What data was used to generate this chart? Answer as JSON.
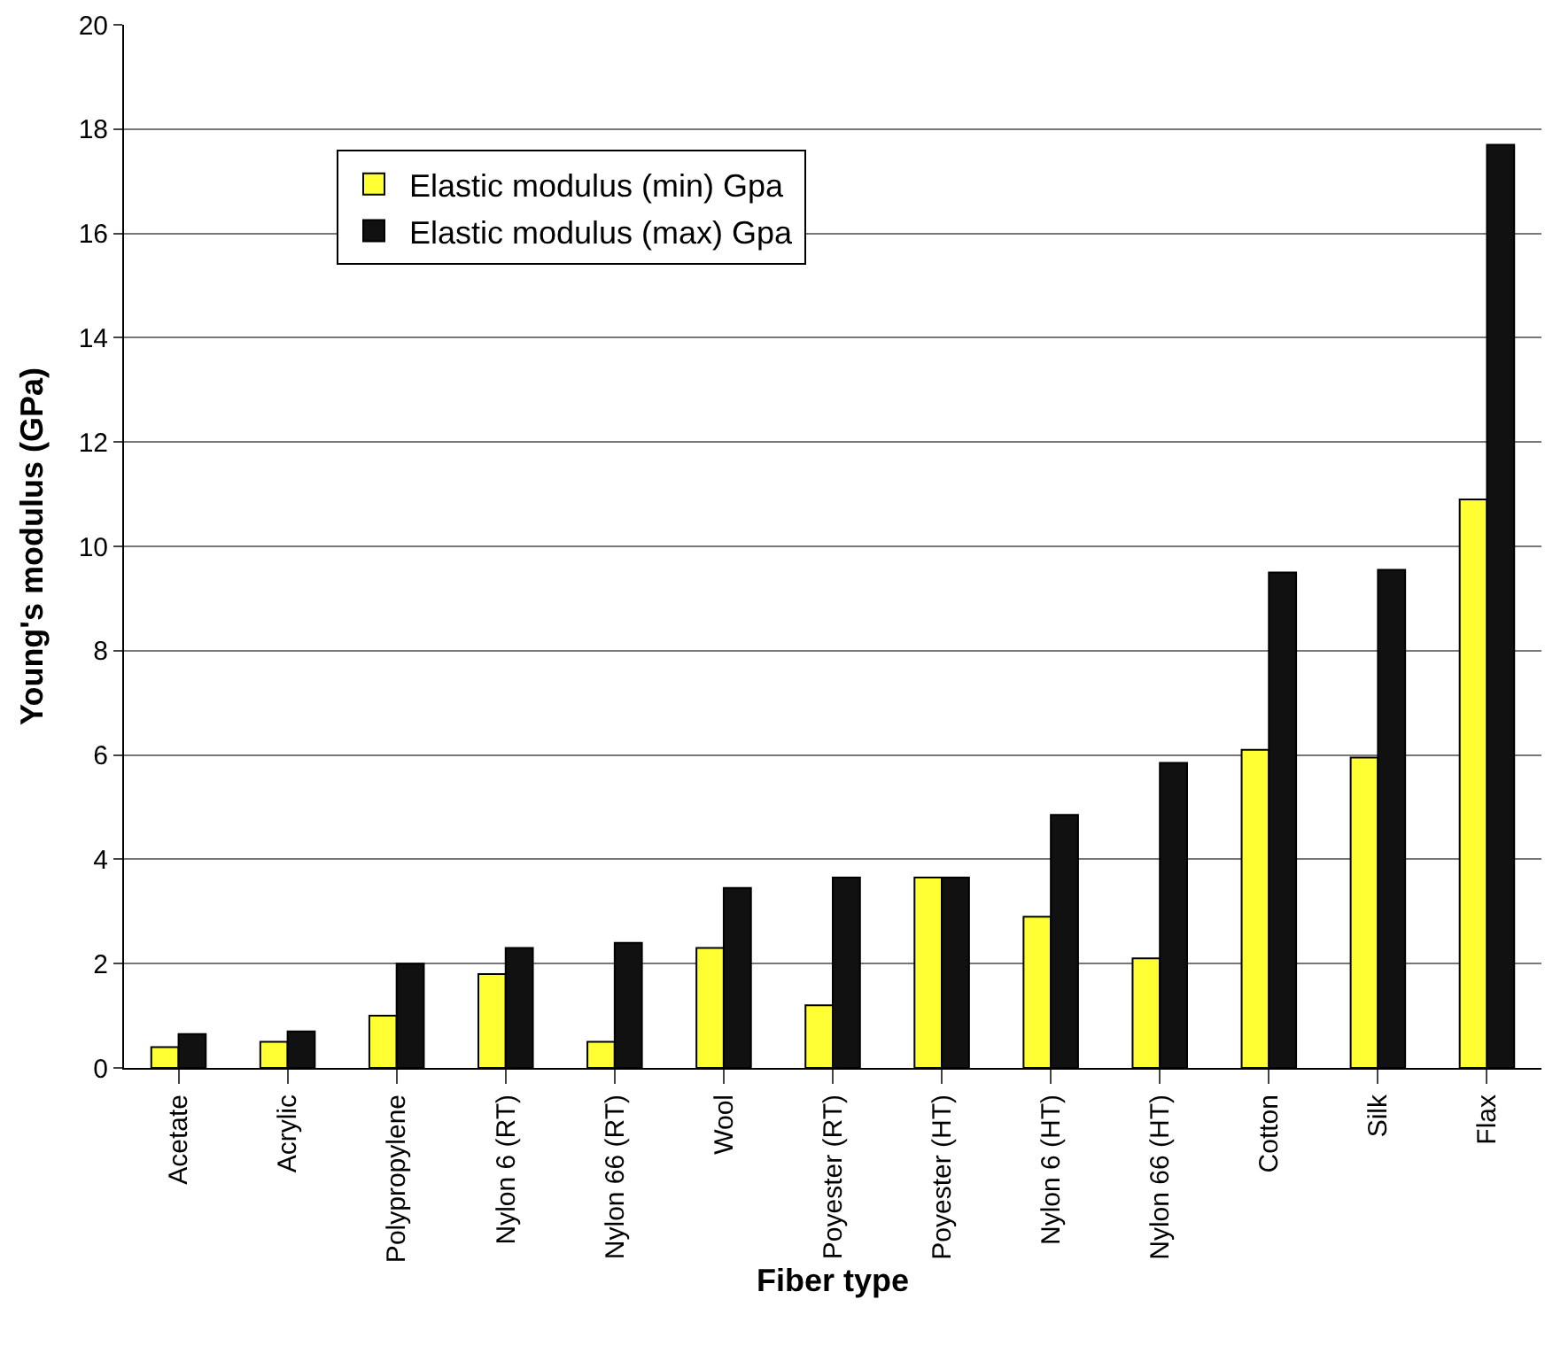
{
  "chart_data": {
    "type": "bar",
    "xlabel": "Fiber type",
    "ylabel": "Young's modulus (GPa)",
    "categories": [
      "Acetate",
      "Acrylic",
      "Polypropylene",
      "Nylon 6 (RT)",
      "Nylon 66 (RT)",
      "Wool",
      "Poyester (RT)",
      "Poyester (HT)",
      "Nylon 6 (HT)",
      "Nylon 66 (HT)",
      "Cotton",
      "Silk",
      "Flax"
    ],
    "series": [
      {
        "name": "Elastic modulus (min) Gpa",
        "color": "#ffff33",
        "values": [
          0.4,
          0.5,
          1.0,
          1.8,
          0.5,
          2.3,
          1.2,
          3.65,
          2.9,
          2.1,
          6.1,
          5.95,
          10.9
        ]
      },
      {
        "name": "Elastic modulus (max) Gpa",
        "color": "#111111",
        "values": [
          0.65,
          0.7,
          2.0,
          2.3,
          2.4,
          3.45,
          3.65,
          3.65,
          4.85,
          5.85,
          9.5,
          9.55,
          17.7
        ]
      }
    ],
    "ylim": [
      0,
      20
    ],
    "yticks": [
      0,
      2,
      4,
      6,
      8,
      10,
      12,
      14,
      16,
      18,
      20
    ],
    "grid": "y",
    "legend": "top left"
  }
}
